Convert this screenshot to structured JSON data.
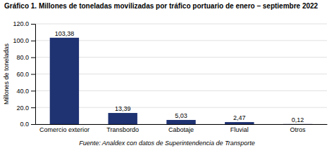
{
  "chart_data": {
    "type": "bar",
    "title": "Gráfico 1. Millones de toneladas movilizadas por tráfico portuario de enero – septiembre 2022",
    "footnote": "Fuente: Analdex con datos de Superintendencia de Transporte",
    "ylabel": "Millones de toneladas",
    "categories": [
      "Comercio exterior",
      "Transbordo",
      "Cabotaje",
      "Fluvial",
      "Otros"
    ],
    "values": [
      103.38,
      13.39,
      5.03,
      2.47,
      0.12
    ],
    "value_labels": [
      "103,38",
      "13,39",
      "5,03",
      "2,47",
      "0,12"
    ],
    "data_labels": true,
    "color": "#1f3272",
    "ylim": [
      0,
      120
    ],
    "yticks": [
      {
        "value": 0,
        "label": "0.0"
      },
      {
        "value": 20,
        "label": "20.0"
      },
      {
        "value": 40,
        "label": "40.0"
      },
      {
        "value": 60,
        "label": "60.0"
      },
      {
        "value": 80,
        "label": "80.0"
      },
      {
        "value": 100,
        "label": "100.0"
      },
      {
        "value": 120,
        "label": "120.0"
      }
    ],
    "grid": true
  }
}
